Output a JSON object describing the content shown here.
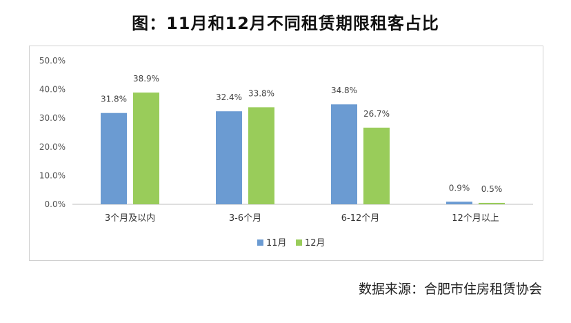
{
  "title": "图：11月和12月不同租赁期限租客占比",
  "source": "数据来源：合肥市住房租赁协会",
  "chart_data": {
    "type": "bar",
    "categories": [
      "3个月及以内",
      "3-6个月",
      "6-12个月",
      "12个月以上"
    ],
    "series": [
      {
        "name": "11月",
        "values": [
          31.8,
          32.4,
          34.8,
          0.9
        ],
        "labels": [
          "31.8%",
          "32.4%",
          "34.8%",
          "0.9%"
        ],
        "color": "#6b9bd2"
      },
      {
        "name": "12月",
        "values": [
          38.9,
          33.8,
          26.7,
          0.5
        ],
        "labels": [
          "38.9%",
          "33.8%",
          "26.7%",
          "0.5%"
        ],
        "color": "#99cc5a"
      }
    ],
    "yticks": [
      "0.0%",
      "10.0%",
      "20.0%",
      "30.0%",
      "40.0%",
      "50.0%"
    ],
    "ylim": [
      0,
      50
    ],
    "grid": false,
    "legend_position": "bottom"
  }
}
